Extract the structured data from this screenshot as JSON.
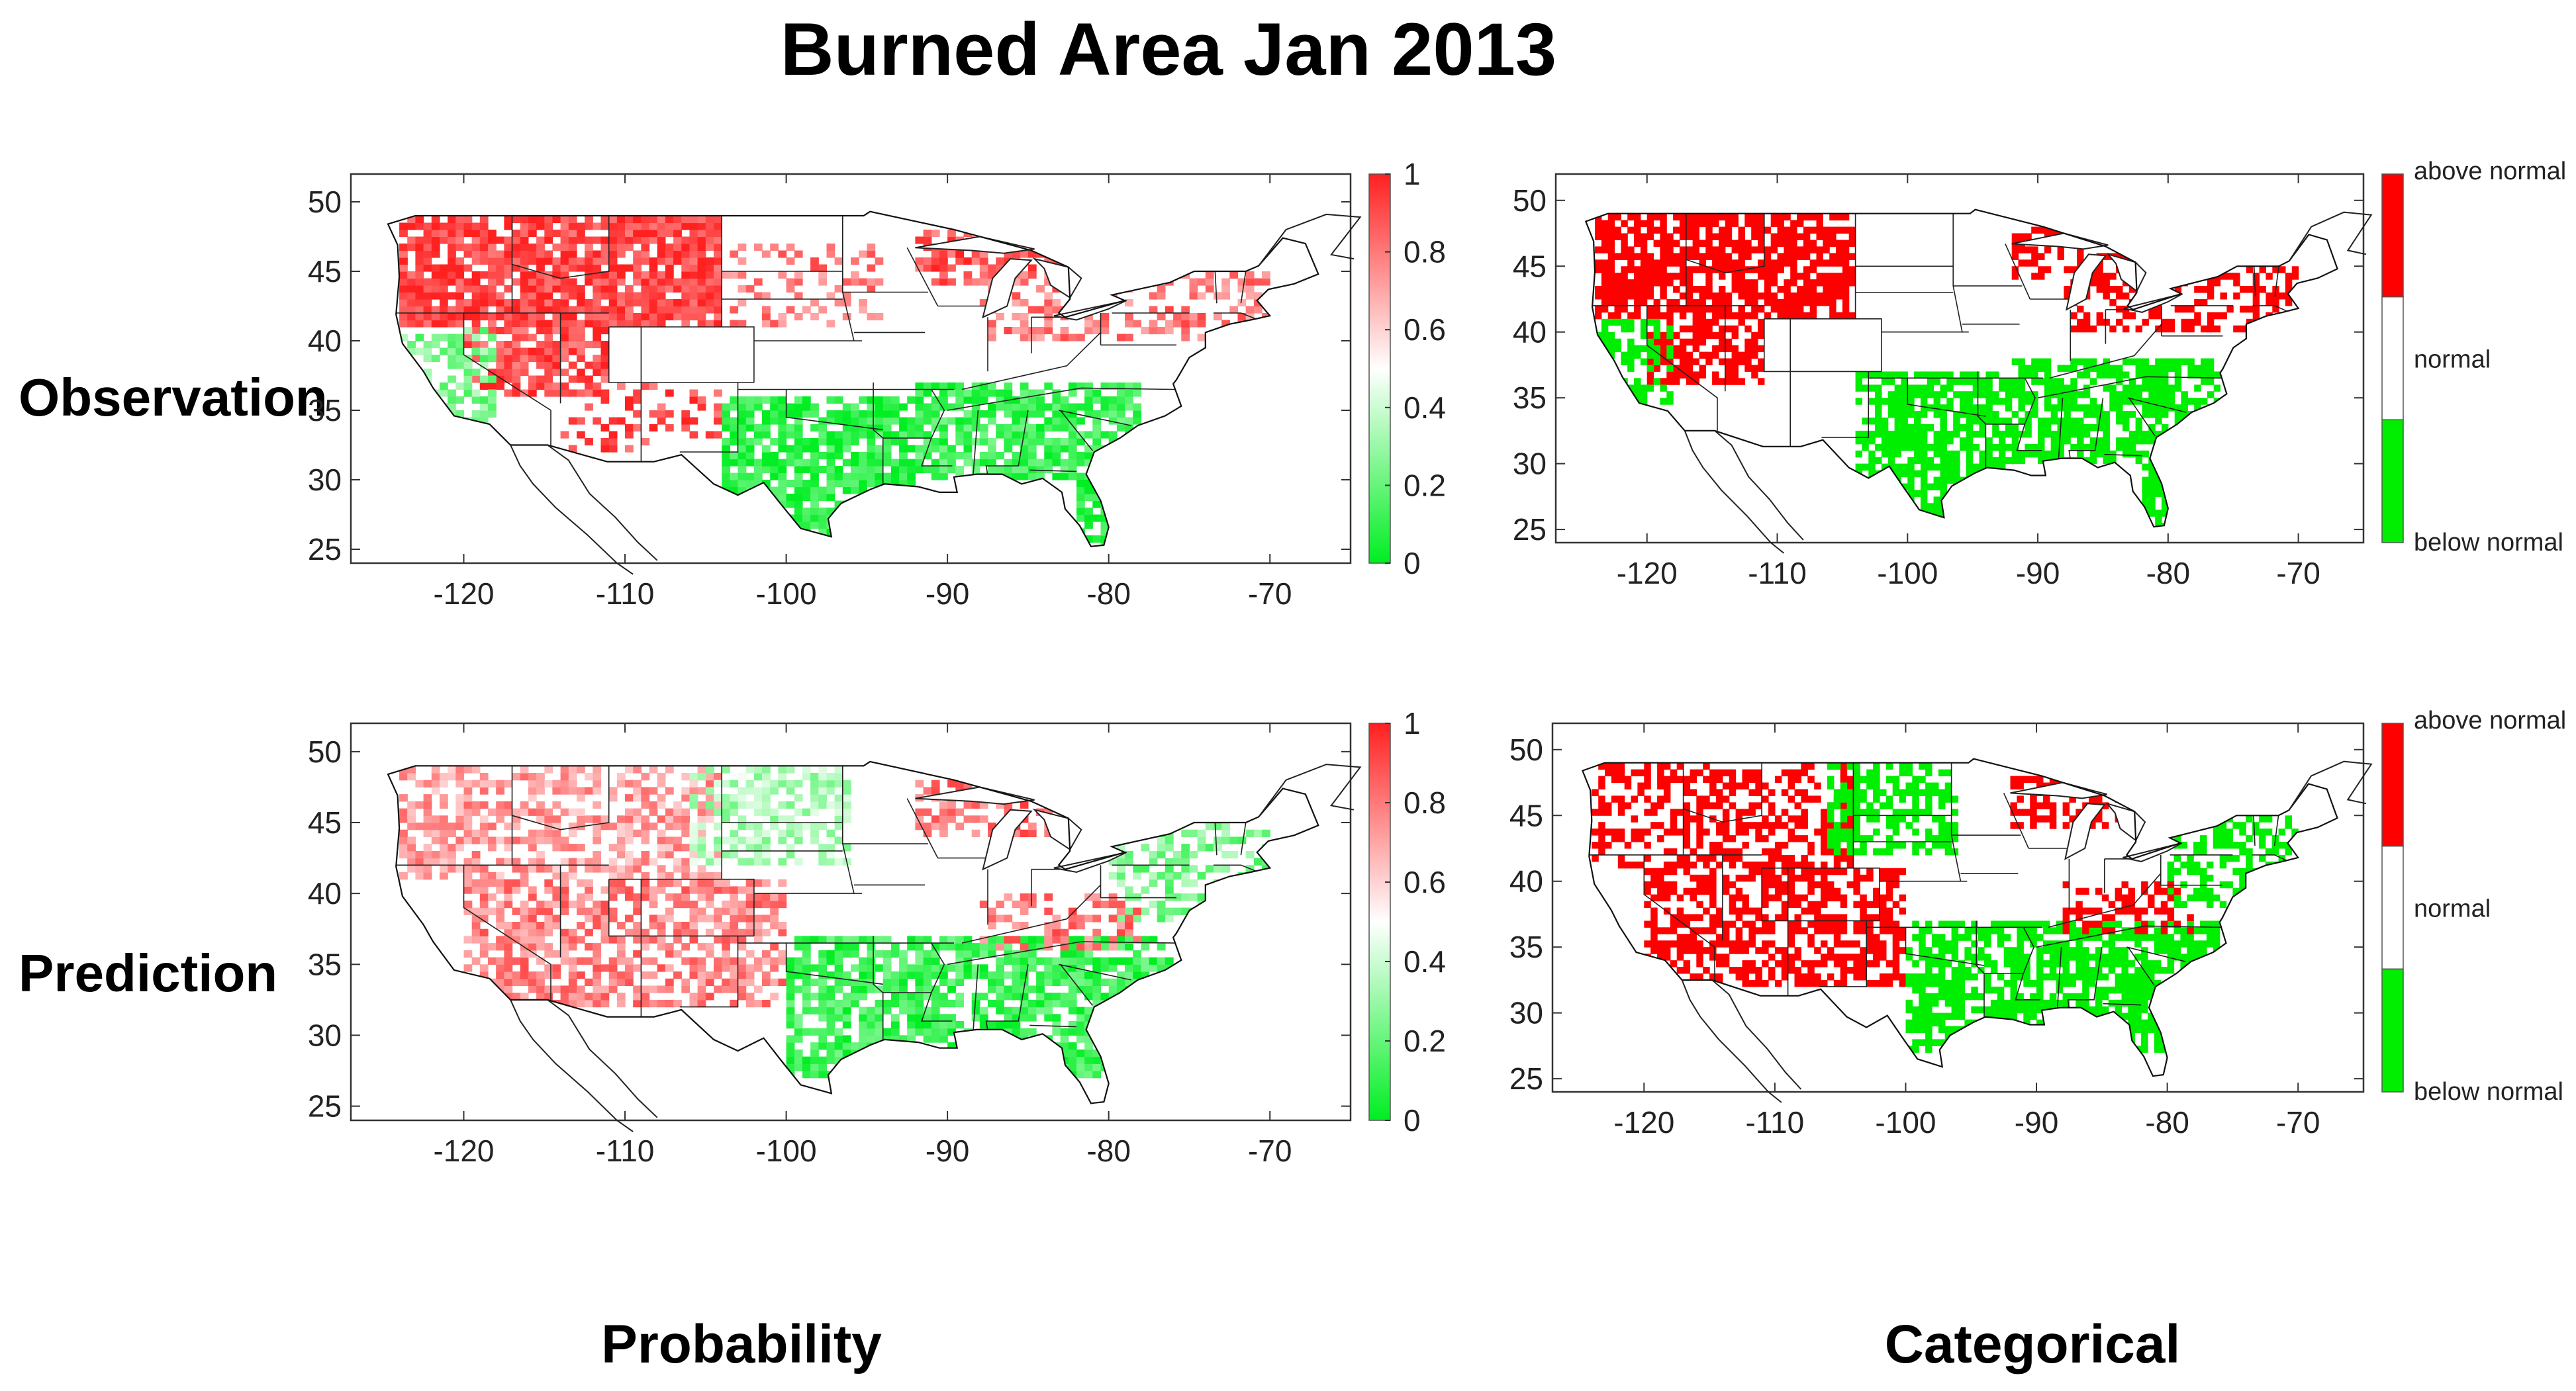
{
  "title": "Burned Area Jan 2013",
  "row_labels": [
    "Observation",
    "Prediction"
  ],
  "column_labels": [
    "Probability",
    "Categorical"
  ],
  "chart_data": [
    {
      "type": "heatmap",
      "id": "obs-prob",
      "row": "Observation",
      "column": "Probability",
      "xlim": [
        -127,
        -65
      ],
      "ylim": [
        24,
        52
      ],
      "xticks": [
        -120,
        -110,
        -100,
        -90,
        -80,
        -70
      ],
      "yticks": [
        25,
        30,
        35,
        40,
        45,
        50
      ],
      "colorbar": {
        "type": "continuous",
        "ticks": [
          "1",
          "0.8",
          "0.6",
          "0.4",
          "0.2",
          "0"
        ],
        "range": [
          0,
          1
        ],
        "colors": [
          "#00ee22",
          "#ffffff",
          "#ff2020"
        ]
      },
      "regions": [
        {
          "lon": [
            -124,
            -104
          ],
          "lat": [
            41,
            49
          ],
          "value": 0.92,
          "density": 0.85
        },
        {
          "lon": [
            -120,
            -111
          ],
          "lat": [
            36,
            41
          ],
          "value": 0.9,
          "density": 0.7
        },
        {
          "lon": [
            -124,
            -118
          ],
          "lat": [
            32,
            41
          ],
          "value": 0.25,
          "density": 0.55
        },
        {
          "lon": [
            -104,
            -94
          ],
          "lat": [
            41,
            47
          ],
          "value": 0.8,
          "density": 0.3
        },
        {
          "lon": [
            -92,
            -82
          ],
          "lat": [
            44,
            48
          ],
          "value": 0.88,
          "density": 0.6
        },
        {
          "lon": [
            -88,
            -70
          ],
          "lat": [
            40,
            45
          ],
          "value": 0.8,
          "density": 0.45
        },
        {
          "lon": [
            -104,
            -92
          ],
          "lat": [
            26,
            36
          ],
          "value": 0.08,
          "density": 0.8
        },
        {
          "lon": [
            -92,
            -78
          ],
          "lat": [
            30,
            37
          ],
          "value": 0.12,
          "density": 0.75
        },
        {
          "lon": [
            -114,
            -104
          ],
          "lat": [
            32,
            37
          ],
          "value": 0.9,
          "density": 0.3
        },
        {
          "lon": [
            -82,
            -80
          ],
          "lat": [
            25,
            30
          ],
          "value": 0.05,
          "density": 0.8
        }
      ]
    },
    {
      "type": "heatmap",
      "id": "obs-cat",
      "row": "Observation",
      "column": "Categorical",
      "xlim": [
        -127,
        -65
      ],
      "ylim": [
        24,
        52
      ],
      "xticks": [
        -120,
        -110,
        -100,
        -90,
        -80,
        -70
      ],
      "yticks": [
        25,
        30,
        35,
        40,
        45,
        50
      ],
      "colorbar": {
        "type": "categorical",
        "labels": [
          "above normal",
          "normal",
          "below normal"
        ],
        "colors": [
          "#ff0000",
          "#ffffff",
          "#00ee00"
        ]
      },
      "regions": [
        {
          "lon": [
            -124,
            -104
          ],
          "lat": [
            41,
            49
          ],
          "value": 1,
          "density": 0.85
        },
        {
          "lon": [
            -120,
            -111
          ],
          "lat": [
            36,
            41
          ],
          "value": 1,
          "density": 0.75
        },
        {
          "lon": [
            -124,
            -118
          ],
          "lat": [
            32,
            41
          ],
          "value": 0,
          "density": 0.6
        },
        {
          "lon": [
            -92,
            -82
          ],
          "lat": [
            44,
            48
          ],
          "value": 1,
          "density": 0.6
        },
        {
          "lon": [
            -88,
            -70
          ],
          "lat": [
            40,
            45
          ],
          "value": 1,
          "density": 0.5
        },
        {
          "lon": [
            -104,
            -92
          ],
          "lat": [
            26,
            37
          ],
          "value": 0,
          "density": 0.85
        },
        {
          "lon": [
            -92,
            -76
          ],
          "lat": [
            30,
            38
          ],
          "value": 0,
          "density": 0.8
        },
        {
          "lon": [
            -82,
            -80
          ],
          "lat": [
            25,
            30
          ],
          "value": 0,
          "density": 0.85
        }
      ]
    },
    {
      "type": "heatmap",
      "id": "pred-prob",
      "row": "Prediction",
      "column": "Probability",
      "xlim": [
        -127,
        -65
      ],
      "ylim": [
        24,
        52
      ],
      "xticks": [
        -120,
        -110,
        -100,
        -90,
        -80,
        -70
      ],
      "yticks": [
        25,
        30,
        35,
        40,
        45,
        50
      ],
      "colorbar": {
        "type": "continuous",
        "ticks": [
          "1",
          "0.8",
          "0.6",
          "0.4",
          "0.2",
          "0"
        ],
        "range": [
          0,
          1
        ],
        "colors": [
          "#00ee22",
          "#ffffff",
          "#ff2020"
        ]
      },
      "regions": [
        {
          "lon": [
            -124,
            -104
          ],
          "lat": [
            41,
            49
          ],
          "value": 0.72,
          "density": 0.6
        },
        {
          "lon": [
            -106,
            -96
          ],
          "lat": [
            42,
            49
          ],
          "value": 0.35,
          "density": 0.6
        },
        {
          "lon": [
            -120,
            -100
          ],
          "lat": [
            32,
            41
          ],
          "value": 0.78,
          "density": 0.65
        },
        {
          "lon": [
            -92,
            -82
          ],
          "lat": [
            44,
            48
          ],
          "value": 0.82,
          "density": 0.55
        },
        {
          "lon": [
            -100,
            -76
          ],
          "lat": [
            27,
            37
          ],
          "value": 0.12,
          "density": 0.75
        },
        {
          "lon": [
            -80,
            -70
          ],
          "lat": [
            38,
            45
          ],
          "value": 0.25,
          "density": 0.5
        },
        {
          "lon": [
            -88,
            -78
          ],
          "lat": [
            36,
            40
          ],
          "value": 0.8,
          "density": 0.4
        }
      ]
    },
    {
      "type": "heatmap",
      "id": "pred-cat",
      "row": "Prediction",
      "column": "Categorical",
      "xlim": [
        -127,
        -65
      ],
      "ylim": [
        24,
        52
      ],
      "xticks": [
        -120,
        -110,
        -100,
        -90,
        -80,
        -70
      ],
      "yticks": [
        25,
        30,
        35,
        40,
        45,
        50
      ],
      "colorbar": {
        "type": "categorical",
        "labels": [
          "above normal",
          "normal",
          "below normal"
        ],
        "colors": [
          "#ff0000",
          "#ffffff",
          "#00ee00"
        ]
      },
      "regions": [
        {
          "lon": [
            -124,
            -104
          ],
          "lat": [
            41,
            49
          ],
          "value": 1,
          "density": 0.6
        },
        {
          "lon": [
            -106,
            -96
          ],
          "lat": [
            42,
            49
          ],
          "value": 0,
          "density": 0.65
        },
        {
          "lon": [
            -120,
            -100
          ],
          "lat": [
            32,
            41
          ],
          "value": 1,
          "density": 0.7
        },
        {
          "lon": [
            -92,
            -82
          ],
          "lat": [
            44,
            48
          ],
          "value": 1,
          "density": 0.6
        },
        {
          "lon": [
            -100,
            -76
          ],
          "lat": [
            27,
            37
          ],
          "value": 0,
          "density": 0.8
        },
        {
          "lon": [
            -80,
            -70
          ],
          "lat": [
            38,
            45
          ],
          "value": 0,
          "density": 0.55
        },
        {
          "lon": [
            -88,
            -78
          ],
          "lat": [
            36,
            40
          ],
          "value": 1,
          "density": 0.45
        }
      ]
    }
  ]
}
